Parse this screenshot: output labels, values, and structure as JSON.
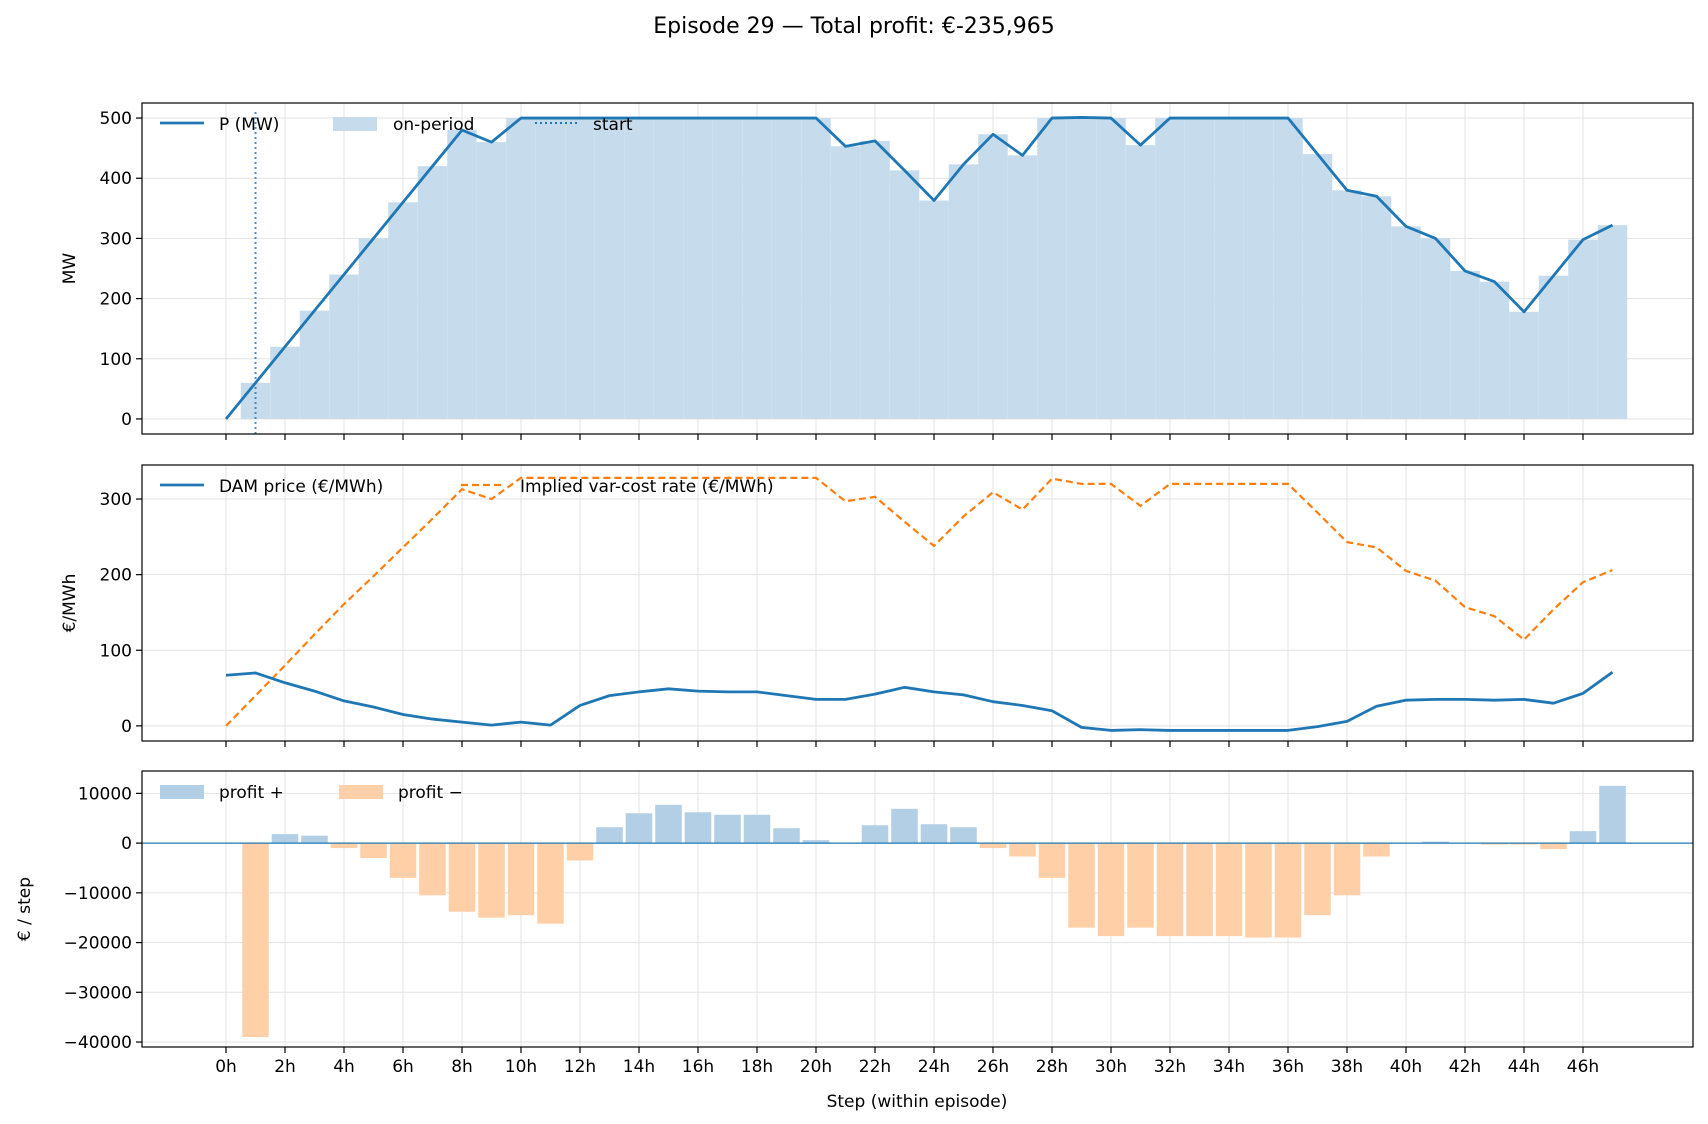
{
  "title": "Episode 29 — Total profit: €-235,965",
  "xlabel": "Step (within episode)",
  "x_tick_labels": [
    "0h",
    "2h",
    "4h",
    "6h",
    "8h",
    "10h",
    "12h",
    "14h",
    "16h",
    "18h",
    "20h",
    "22h",
    "24h",
    "26h",
    "28h",
    "30h",
    "32h",
    "34h",
    "36h",
    "38h",
    "40h",
    "42h",
    "44h",
    "46h"
  ],
  "colors": {
    "blue": "#1f77b4",
    "orange": "#ff7f0e",
    "bar_blue": "#c6dbec",
    "profit_pos": "#b3cfe6",
    "profit_neg": "#ffd0a8"
  },
  "chart_data": [
    {
      "type": "line",
      "ylabel": "MW",
      "ylim": [
        -25,
        525
      ],
      "yticks": [
        0,
        100,
        200,
        300,
        400,
        500
      ],
      "grid": true,
      "legend": [
        "P (MW)",
        "on-period",
        "start"
      ],
      "start_step": 1,
      "series": [
        {
          "name": "P (MW)",
          "x": [
            0,
            1,
            2,
            3,
            4,
            5,
            6,
            7,
            8,
            9,
            10,
            11,
            12,
            13,
            14,
            15,
            16,
            17,
            18,
            19,
            20,
            21,
            22,
            23,
            24,
            25,
            26,
            27,
            28,
            29,
            30,
            31,
            32,
            33,
            34,
            35,
            36,
            37,
            38,
            39,
            40,
            41,
            42,
            43,
            44,
            45,
            46,
            47
          ],
          "values": [
            0,
            60,
            120,
            180,
            240,
            300,
            360,
            420,
            480,
            460,
            500,
            500,
            500,
            500,
            500,
            500,
            500,
            500,
            500,
            500,
            500,
            453,
            462,
            413,
            363,
            423,
            473,
            438,
            500,
            501,
            500,
            455,
            500,
            500,
            500,
            500,
            500,
            440,
            380,
            370,
            320,
            300,
            246,
            228,
            178,
            238,
            298,
            322
          ]
        },
        {
          "name": "on-period",
          "x": [
            1,
            2,
            3,
            4,
            5,
            6,
            7,
            8,
            9,
            10,
            11,
            12,
            13,
            14,
            15,
            16,
            17,
            18,
            19,
            20,
            21,
            22,
            23,
            24,
            25,
            26,
            27,
            28,
            29,
            30,
            31,
            32,
            33,
            34,
            35,
            36,
            37,
            38,
            39,
            40,
            41,
            42,
            43,
            44,
            45,
            46,
            47
          ],
          "values": [
            60,
            120,
            180,
            240,
            300,
            360,
            420,
            480,
            460,
            500,
            500,
            500,
            500,
            500,
            500,
            500,
            500,
            500,
            500,
            500,
            453,
            462,
            413,
            363,
            423,
            473,
            438,
            500,
            501,
            500,
            455,
            500,
            500,
            500,
            500,
            500,
            440,
            380,
            370,
            320,
            300,
            246,
            228,
            178,
            238,
            298,
            322
          ]
        }
      ]
    },
    {
      "type": "line",
      "ylabel": "€/MWh",
      "ylim": [
        -20,
        345
      ],
      "yticks": [
        0,
        100,
        200,
        300
      ],
      "grid": true,
      "legend": [
        "DAM price (€/MWh)",
        "Implied var-cost rate (€/MWh)"
      ],
      "series": [
        {
          "name": "DAM price (€/MWh)",
          "x": [
            0,
            1,
            2,
            3,
            4,
            5,
            6,
            7,
            8,
            9,
            10,
            11,
            12,
            13,
            14,
            15,
            16,
            17,
            18,
            19,
            20,
            21,
            22,
            23,
            24,
            25,
            26,
            27,
            28,
            29,
            30,
            31,
            32,
            33,
            34,
            35,
            36,
            37,
            38,
            39,
            40,
            41,
            42,
            43,
            44,
            45,
            46,
            47
          ],
          "values": [
            67,
            70,
            57,
            46,
            33,
            25,
            15,
            9,
            5,
            1,
            5,
            1,
            27,
            40,
            45,
            49,
            46,
            45,
            45,
            40,
            35,
            35,
            42,
            51,
            45,
            41,
            32,
            27,
            20,
            -2,
            -6,
            -5,
            -6,
            -6,
            -6,
            -6,
            -6,
            -1,
            6,
            26,
            34,
            35,
            35,
            34,
            35,
            30,
            43,
            71
          ]
        },
        {
          "name": "Implied var-cost rate (€/MWh)",
          "x": [
            0,
            1,
            2,
            3,
            4,
            5,
            6,
            7,
            8,
            9,
            10,
            11,
            12,
            13,
            14,
            15,
            16,
            17,
            18,
            19,
            20,
            21,
            22,
            23,
            24,
            25,
            26,
            27,
            28,
            29,
            30,
            31,
            32,
            33,
            34,
            35,
            36,
            37,
            38,
            39,
            40,
            41,
            42,
            43,
            44,
            45,
            46,
            47
          ],
          "values": [
            0,
            40,
            80,
            121,
            161,
            198,
            236,
            274,
            313,
            300,
            328,
            328,
            328,
            328,
            328,
            328,
            328,
            328,
            328,
            328,
            328,
            297,
            303,
            270,
            238,
            277,
            309,
            286,
            327,
            320,
            320,
            291,
            320,
            320,
            320,
            320,
            320,
            282,
            243,
            236,
            205,
            192,
            157,
            145,
            114,
            154,
            190,
            206
          ]
        }
      ]
    },
    {
      "type": "bar",
      "ylabel": "€ / step",
      "ylim": [
        -41000,
        14500
      ],
      "yticks": [
        10000,
        0,
        -10000,
        -20000,
        -30000,
        -40000
      ],
      "grid": true,
      "legend": [
        "profit +",
        "profit −"
      ],
      "x": [
        0,
        1,
        2,
        3,
        4,
        5,
        6,
        7,
        8,
        9,
        10,
        11,
        12,
        13,
        14,
        15,
        16,
        17,
        18,
        19,
        20,
        21,
        22,
        23,
        24,
        25,
        26,
        27,
        28,
        29,
        30,
        31,
        32,
        33,
        34,
        35,
        36,
        37,
        38,
        39,
        40,
        41,
        42,
        43,
        44,
        45,
        46,
        47
      ],
      "values": [
        0,
        -39000,
        1800,
        1500,
        -1000,
        -3000,
        -7000,
        -10500,
        -13800,
        -15000,
        -14500,
        -16200,
        -3500,
        3200,
        6000,
        7700,
        6200,
        5700,
        5700,
        3000,
        600,
        0,
        3600,
        6900,
        3800,
        3200,
        -1000,
        -2700,
        -7000,
        -17000,
        -18700,
        -17000,
        -18700,
        -18700,
        -18700,
        -19000,
        -19000,
        -14500,
        -10500,
        -2700,
        100,
        300,
        0,
        -300,
        -300,
        -1200,
        2400,
        11500
      ]
    }
  ]
}
